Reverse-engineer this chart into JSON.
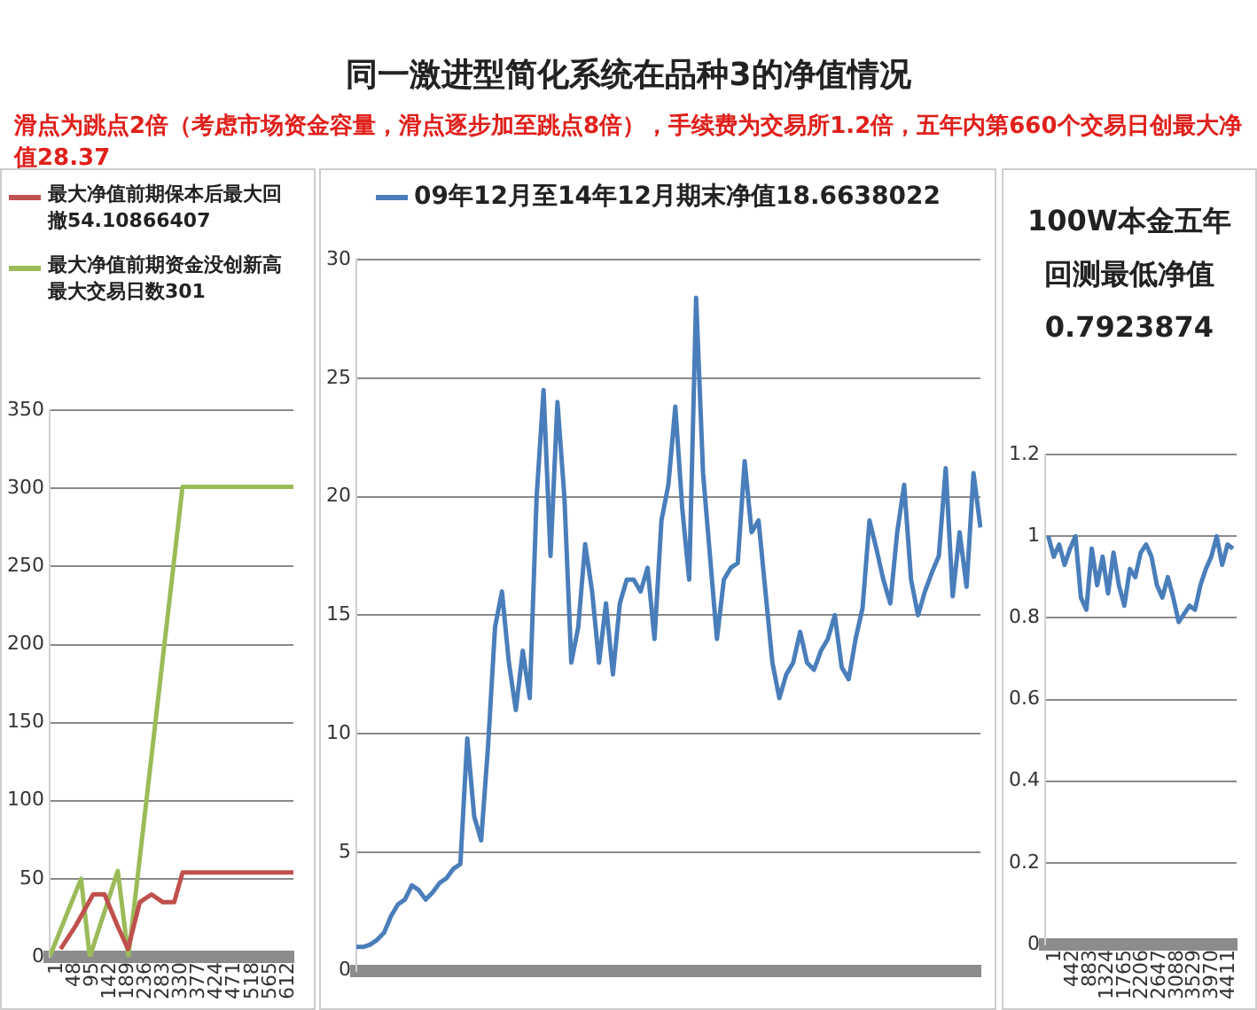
{
  "chart_data": [
    {
      "type": "other",
      "title": "同一激进型简化系统在品种3的净值情况",
      "subtitle": "滑点为跳点2倍（考虑市场资金容量，滑点逐步加至跳点8倍），手续费为交易所1.2倍，五年内第660个交易日创最大净值28.37"
    },
    {
      "type": "line",
      "legend": "top",
      "grid": "y",
      "xlim": [
        1,
        645
      ],
      "xticks": [
        1,
        48,
        95,
        142,
        189,
        236,
        283,
        330,
        377,
        424,
        471,
        518,
        565,
        612
      ],
      "ylim": [
        0,
        350
      ],
      "yticks": [
        0,
        50,
        100,
        150,
        200,
        250,
        300,
        350
      ],
      "series": [
        {
          "name": "最大净值前期保本后最大回撤54.10866407",
          "color": "#c0504d",
          "x": [
            30,
            70,
            116,
            146,
            180,
            208,
            239,
            270,
            300,
            330,
            352,
            645
          ],
          "values": [
            5,
            20,
            40,
            40,
            20,
            5,
            35,
            40,
            35,
            35,
            54,
            54
          ]
        },
        {
          "name": "最大净值前期资金没创新高最大交易日数301",
          "color": "#9bbb59",
          "x": [
            1,
            84,
            107,
            181,
            209,
            352,
            645
          ],
          "values": [
            0,
            50,
            0,
            55,
            0,
            301,
            301
          ]
        }
      ]
    },
    {
      "type": "line",
      "legend": "top",
      "grid": "y",
      "categories": [
        null,
        null,
        null,
        null,
        null,
        null,
        null,
        null,
        null,
        null,
        null,
        null,
        null,
        null,
        null,
        null,
        null,
        null,
        null,
        null,
        null,
        null,
        null,
        null,
        null,
        null,
        null,
        null,
        null,
        null,
        null,
        null,
        null,
        null,
        null,
        null,
        null,
        null,
        null,
        null,
        null,
        null,
        null,
        null,
        null,
        null,
        null,
        null,
        null,
        null,
        null,
        null,
        null,
        null,
        null,
        null,
        null,
        null,
        null,
        null,
        null,
        null,
        null,
        null,
        null,
        null,
        null,
        null,
        null,
        null,
        null,
        null,
        null,
        null,
        null,
        null,
        null,
        null,
        null,
        null,
        null,
        null,
        null,
        null,
        null,
        null,
        null,
        null,
        null,
        null,
        null
      ],
      "ylim": [
        0,
        30
      ],
      "yticks": [
        0,
        5,
        10,
        15,
        20,
        25,
        30
      ],
      "series": [
        {
          "name": "09年12月至14年12月期末净值18.6638022",
          "color": "#4a7ebb",
          "values": [
            1.0,
            1.0,
            1.1,
            1.3,
            1.6,
            2.3,
            2.8,
            3.0,
            3.6,
            3.4,
            3.0,
            3.3,
            3.7,
            3.9,
            4.3,
            4.5,
            9.8,
            6.5,
            5.5,
            9.5,
            14.5,
            16.0,
            13.0,
            11.0,
            13.5,
            11.5,
            20.0,
            24.5,
            17.5,
            24.0,
            20.0,
            13.0,
            14.5,
            18.0,
            16.0,
            13.0,
            15.5,
            12.5,
            15.5,
            16.5,
            16.5,
            16.0,
            17.0,
            14.0,
            19.0,
            20.5,
            23.8,
            19.5,
            16.5,
            28.4,
            21.0,
            17.5,
            14.0,
            16.5,
            17.0,
            17.2,
            21.5,
            18.5,
            19.0,
            16.0,
            13.0,
            11.5,
            12.5,
            13.0,
            14.3,
            13.0,
            12.7,
            13.5,
            14.0,
            15.0,
            12.8,
            12.3,
            14.0,
            15.3,
            19.0,
            17.8,
            16.5,
            15.5,
            18.5,
            20.5,
            16.5,
            15.0,
            16.0,
            16.8,
            17.5,
            21.2,
            15.8,
            18.5,
            16.2,
            21.0,
            18.7
          ]
        }
      ]
    },
    {
      "type": "line",
      "title": "100W本金五年回测最低净值 0.7923874",
      "grid": "y",
      "xlim": [
        -80,
        4780
      ],
      "xticks": [
        1,
        442,
        883,
        1324,
        1765,
        2206,
        2647,
        3088,
        3529,
        3970,
        4411
      ],
      "ylim": [
        0,
        1.2
      ],
      "yticks": [
        0,
        0.2,
        0.4,
        0.6,
        0.8,
        1,
        1.2
      ],
      "series": [
        {
          "color": "#4a7ebb",
          "x": [
            1,
            139,
            277,
            414,
            552,
            690,
            828,
            966,
            1103,
            1241,
            1379,
            1517,
            1655,
            1792,
            1930,
            2068,
            2206,
            2344,
            2481,
            2619,
            2757,
            2895,
            3033,
            3170,
            3308,
            3446,
            3584,
            3722,
            3859,
            3997,
            4135,
            4273,
            4411,
            4548,
            4686
          ],
          "values": [
            1.0,
            0.95,
            0.98,
            0.93,
            0.97,
            1.0,
            0.85,
            0.82,
            0.97,
            0.88,
            0.95,
            0.86,
            0.96,
            0.88,
            0.83,
            0.92,
            0.9,
            0.96,
            0.98,
            0.95,
            0.88,
            0.85,
            0.9,
            0.85,
            0.79,
            0.81,
            0.83,
            0.82,
            0.88,
            0.92,
            0.95,
            1.0,
            0.93,
            0.98,
            0.97
          ]
        }
      ]
    }
  ]
}
